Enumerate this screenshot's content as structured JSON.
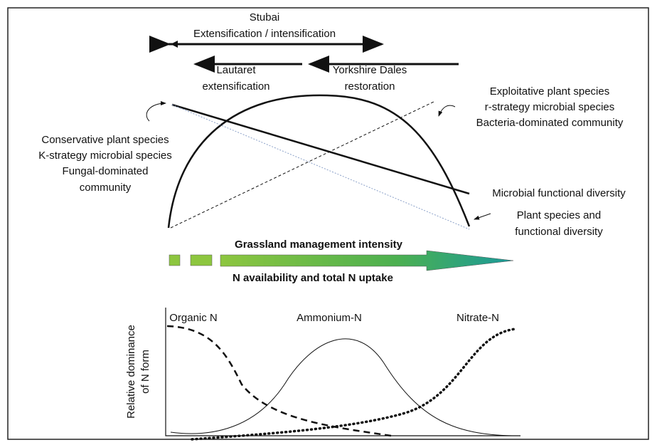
{
  "top_arrows": {
    "stubai": [
      "Stubai",
      "Extensification / intensification"
    ],
    "lautaret": [
      "Lautaret",
      "extensification"
    ],
    "yorkshire": [
      "Yorkshire Dales",
      "restoration"
    ]
  },
  "right_labels": [
    "Exploitative plant species",
    "r-strategy microbial species",
    "Bacteria-dominated community"
  ],
  "left_labels": [
    "Conservative plant species",
    "K-strategy microbial species",
    "Fungal-dominated",
    "community"
  ],
  "microbial_label": "Microbial functional diversity",
  "plant_label": [
    "Plant species and",
    "functional diversity"
  ],
  "gradient": {
    "above": "Grassland management intensity",
    "below": "N availability and total N uptake"
  },
  "n_forms": {
    "y_label": [
      "Relative dominance",
      "of N form"
    ],
    "curves": [
      "Organic N",
      "Ammonium-N",
      "Nitrate-N"
    ]
  }
}
